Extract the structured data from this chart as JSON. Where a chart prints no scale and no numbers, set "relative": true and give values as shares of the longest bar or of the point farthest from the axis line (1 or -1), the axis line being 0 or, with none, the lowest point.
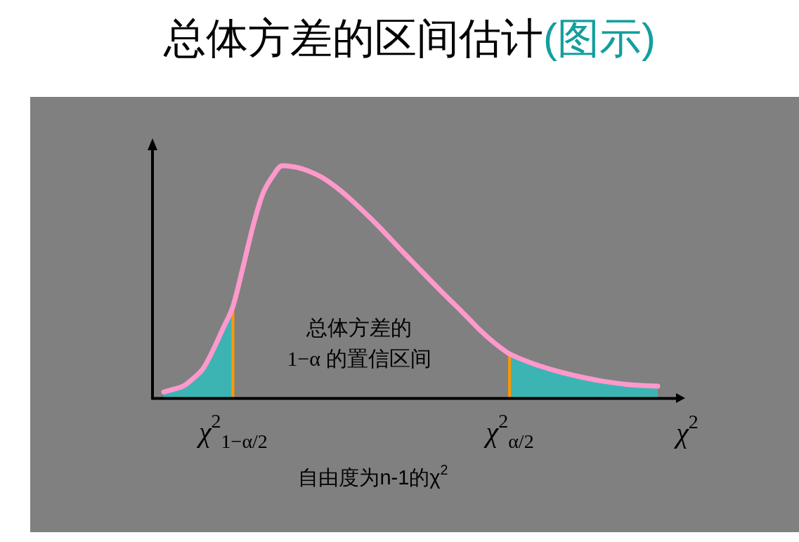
{
  "chart_data": {
    "type": "line",
    "title": "总体方差的区间估计",
    "subtitle": "(图示)",
    "xlabel": "χ$^{2}$",
    "annotations": [
      "总体方差的\n1−α 的置信区间",
      "自由度为n-1的χ$^{2}$"
    ],
    "relative": true,
    "tick_labels": "x",
    "categories": [
      null,
      null,
      null,
      null,
      null,
      null,
      null,
      "χ$^{2}$$_{1−α/2}$",
      null,
      null,
      null,
      null,
      null,
      null,
      null,
      null,
      null,
      null,
      null,
      null,
      null,
      null,
      null,
      null,
      null,
      null,
      null,
      null,
      null,
      null,
      null,
      null,
      null,
      null,
      null,
      "χ$^{2}$$_{α/2}$",
      null,
      null,
      null,
      null,
      null,
      null,
      null,
      null,
      null,
      null,
      null,
      null,
      null,
      null,
      null
    ],
    "series": [
      {
        "type": "area",
        "color": "#3cb4b4",
        "values": [
          0.026,
          0.038,
          0.052,
          0.085,
          0.128,
          0.207,
          0.3,
          0.394,
          null,
          null,
          null,
          null,
          null,
          null,
          null,
          null,
          null,
          null,
          null,
          null,
          null,
          null,
          null,
          null,
          null,
          null,
          null,
          null,
          null,
          null,
          null,
          null,
          null,
          null,
          null,
          null,
          null,
          null,
          null,
          null,
          null,
          null,
          null,
          null,
          null,
          null,
          null,
          null,
          null,
          null,
          null
        ]
      },
      {
        "type": "area",
        "color": "#3cb4b4",
        "values": [
          null,
          null,
          null,
          null,
          null,
          null,
          null,
          null,
          null,
          null,
          null,
          null,
          null,
          null,
          null,
          null,
          null,
          null,
          null,
          null,
          null,
          null,
          null,
          null,
          null,
          null,
          null,
          null,
          null,
          null,
          null,
          null,
          null,
          null,
          null,
          0.19,
          0.171,
          0.154,
          0.139,
          0.126,
          0.114,
          0.103,
          0.093,
          0.084,
          0.076,
          0.069,
          0.063,
          0.058,
          0.055,
          0.053,
          0.051
        ]
      },
      {
        "color": "#ff99cc",
        "values": [
          0.026,
          0.038,
          0.052,
          0.085,
          0.128,
          0.207,
          0.3,
          0.394,
          0.559,
          0.734,
          0.876,
          0.953,
          1,
          0.996,
          0.987,
          0.971,
          0.95,
          0.922,
          0.889,
          0.852,
          0.812,
          0.771,
          0.728,
          0.683,
          0.638,
          0.594,
          0.55,
          0.506,
          0.463,
          0.421,
          0.379,
          0.336,
          0.293,
          0.254,
          0.22,
          0.19,
          0.171,
          0.154,
          0.139,
          0.126,
          0.114,
          0.103,
          0.093,
          0.084,
          0.076,
          0.069,
          0.063,
          0.058,
          0.055,
          0.053,
          0.051
        ]
      }
    ],
    "ref_lines": [
      {
        "axis": "x",
        "value": "χ$^{2}$$_{1−α/2}$",
        "color": "#ff9900"
      },
      {
        "axis": "x",
        "value": "χ$^{2}$$_{α/2}$",
        "color": "#ff9900"
      }
    ]
  }
}
